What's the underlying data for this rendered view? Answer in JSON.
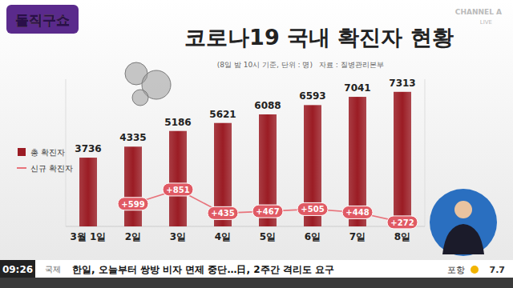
{
  "chart_data": {
    "type": "bar",
    "title": "코로나19 국내 확진자 현황",
    "subtitle": "(8일 밤 10시 기준, 단위 : 명)",
    "annotations": [
      "자료 : 질병관리본부"
    ],
    "categories": [
      "3월 1일",
      "2일",
      "3일",
      "4일",
      "5일",
      "6일",
      "7일",
      "8일"
    ],
    "series": [
      {
        "name": "총 확진자",
        "color": "#9b1c24",
        "type": "bar",
        "values": [
          3736,
          4335,
          5186,
          5621,
          6088,
          6593,
          7041,
          7313
        ]
      },
      {
        "name": "신규 확진자",
        "color": "#e8737b",
        "type": "line",
        "axis": "y2",
        "values": [
          null,
          599,
          851,
          435,
          467,
          505,
          448,
          272
        ],
        "value_labels": [
          null,
          "+599",
          "+851",
          "+435",
          "+467",
          "+505",
          "+448",
          "+272"
        ]
      }
    ],
    "ylim": [
      0,
      8000
    ],
    "y2lim": [
      200,
      2800
    ],
    "tick_labels": false,
    "data_labels": true,
    "grid": false,
    "legend": "top-left"
  },
  "broadcast": {
    "show_logo": "돌직구쇼",
    "channel": "CHANNEL A",
    "live": "LIVE",
    "ticker": {
      "time": "09:26",
      "section": "국제",
      "headline": "한일, 오늘부터 쌍방 비자 면제 중단…日, 2주간 격리도 요구",
      "city": "포항",
      "temperature": 7.7
    }
  }
}
